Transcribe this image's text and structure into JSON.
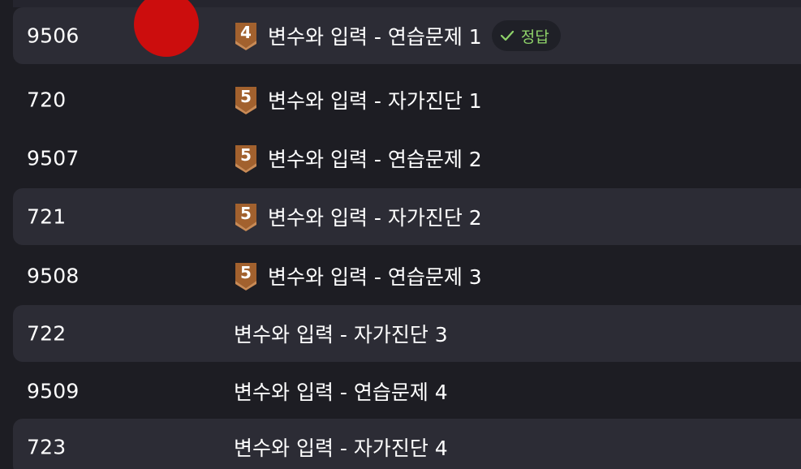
{
  "rows": [
    {
      "id": "9506",
      "tier": "4",
      "title": "변수와 입력 - 연습문제 1",
      "solved_label": "정답"
    },
    {
      "id": "720",
      "tier": "5",
      "title": "변수와 입력 - 자가진단 1"
    },
    {
      "id": "9507",
      "tier": "5",
      "title": "변수와 입력 - 연습문제 2"
    },
    {
      "id": "721",
      "tier": "5",
      "title": "변수와 입력 - 자가진단 2"
    },
    {
      "id": "9508",
      "tier": "5",
      "title": "변수와 입력 - 연습문제 3"
    },
    {
      "id": "722",
      "title": "변수와 입력 - 자가진단 3"
    },
    {
      "id": "9509",
      "title": "변수와 입력 - 연습문제 4"
    },
    {
      "id": "723",
      "title": "변수와 입력 - 자가진단 4"
    }
  ],
  "colors": {
    "background": "#1d1d23",
    "row_shaded": "#2c2c35",
    "tier_badge": "#a2612e",
    "solved_text": "#8fd36a",
    "pointer_dot": "#cc0d0d"
  },
  "icons": {
    "tier": "tier-badge-icon",
    "solved": "check-icon",
    "pointer": "pointer-dot"
  }
}
